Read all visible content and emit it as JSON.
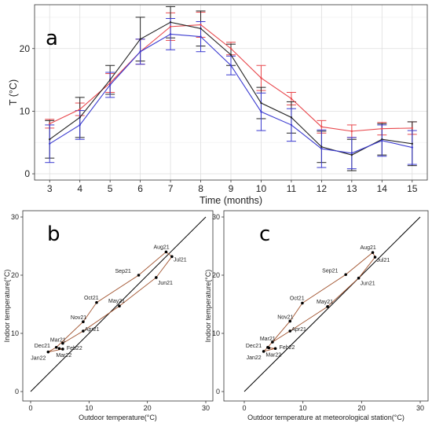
{
  "chart_data": [
    {
      "type": "line",
      "panel_label": "a",
      "xlabel": "Time (months)",
      "ylabel": "T (°C)",
      "x": [
        3,
        4,
        5,
        6,
        7,
        8,
        9,
        10,
        11,
        12,
        13,
        14,
        15
      ],
      "xlim": [
        2.5,
        15.5
      ],
      "ylim": [
        -1,
        27
      ],
      "x_ticks": [
        3,
        4,
        5,
        6,
        7,
        8,
        9,
        10,
        11,
        12,
        13,
        14,
        15
      ],
      "y_ticks": [
        0,
        10,
        20
      ],
      "grid": true,
      "legend": "none",
      "series": [
        {
          "color": "#e8474c",
          "values": [
            8.0,
            10.3,
            14.5,
            19.5,
            23.5,
            23.8,
            20.0,
            15.3,
            12.0,
            7.5,
            6.8,
            7.2,
            7.3
          ],
          "err": [
            0.7,
            1.0,
            1.5,
            2.0,
            2.2,
            2.0,
            1.0,
            2.0,
            1.0,
            1.0,
            1.0,
            1.0,
            1.0
          ]
        },
        {
          "color": "#222222",
          "values": [
            5.5,
            9.0,
            15.0,
            21.5,
            24.2,
            23.2,
            19.0,
            11.3,
            9.0,
            4.3,
            3.0,
            5.5,
            4.8
          ],
          "err": [
            3.0,
            3.2,
            2.3,
            3.5,
            2.5,
            2.8,
            1.7,
            2.5,
            2.5,
            2.5,
            2.5,
            2.5,
            3.5
          ]
        },
        {
          "color": "#3a3ad0",
          "values": [
            4.8,
            7.8,
            14.2,
            19.5,
            22.3,
            21.9,
            17.3,
            9.9,
            7.8,
            4.0,
            3.3,
            5.3,
            4.2
          ],
          "err": [
            3.0,
            2.3,
            2.0,
            2.0,
            2.5,
            2.4,
            1.5,
            3.0,
            2.6,
            3.0,
            2.5,
            2.5,
            2.7
          ]
        }
      ]
    },
    {
      "type": "scatter",
      "panel_label": "b",
      "xlabel": "Outdoor temperature(°C)",
      "ylabel": "Indoor temperature(°C)",
      "xlim": [
        0,
        30
      ],
      "ylim": [
        0,
        30
      ],
      "x_ticks": [
        0,
        10,
        20,
        30
      ],
      "y_ticks": [
        0,
        10,
        20,
        30
      ],
      "grid": false,
      "identity_line": true,
      "path_color": "#a0522d",
      "points": [
        {
          "label": "Mar21",
          "x": 5.5,
          "y": 8.3
        },
        {
          "label": "Apr21",
          "x": 9.0,
          "y": 10.4
        },
        {
          "label": "May21",
          "x": 15.2,
          "y": 14.7
        },
        {
          "label": "Jun21",
          "x": 21.5,
          "y": 19.6
        },
        {
          "label": "Jul21",
          "x": 24.2,
          "y": 23.2
        },
        {
          "label": "Aug21",
          "x": 23.2,
          "y": 24.0
        },
        {
          "label": "Sep21",
          "x": 18.5,
          "y": 20.0
        },
        {
          "label": "Oct21",
          "x": 11.3,
          "y": 15.3
        },
        {
          "label": "Nov21",
          "x": 9.0,
          "y": 12.0
        },
        {
          "label": "Dec21",
          "x": 4.4,
          "y": 7.6
        },
        {
          "label": "Jan22",
          "x": 3.0,
          "y": 6.8
        },
        {
          "label": "Feb22",
          "x": 5.5,
          "y": 7.3
        },
        {
          "label": "Mar22",
          "x": 4.9,
          "y": 7.4
        }
      ]
    },
    {
      "type": "scatter",
      "panel_label": "c",
      "xlabel": "Outdoor temperature at meteorological station(°C)",
      "ylabel": "Indoor temperature(°C)",
      "xlim": [
        0,
        30
      ],
      "ylim": [
        0,
        30
      ],
      "x_ticks": [
        0,
        10,
        20,
        30
      ],
      "y_ticks": [
        0,
        10,
        20,
        30
      ],
      "grid": false,
      "identity_line": true,
      "path_color": "#a0522d",
      "points": [
        {
          "label": "Mar21",
          "x": 4.8,
          "y": 8.5
        },
        {
          "label": "Apr21",
          "x": 7.8,
          "y": 10.4
        },
        {
          "label": "May21",
          "x": 14.2,
          "y": 14.6
        },
        {
          "label": "Jun21",
          "x": 19.5,
          "y": 19.5
        },
        {
          "label": "Jul21",
          "x": 22.3,
          "y": 23.1
        },
        {
          "label": "Aug21",
          "x": 21.9,
          "y": 23.9
        },
        {
          "label": "Sep21",
          "x": 17.3,
          "y": 20.1
        },
        {
          "label": "Oct21",
          "x": 9.9,
          "y": 15.2
        },
        {
          "label": "Nov21",
          "x": 7.8,
          "y": 12.1
        },
        {
          "label": "Dec21",
          "x": 4.0,
          "y": 7.6
        },
        {
          "label": "Jan22",
          "x": 3.3,
          "y": 6.9
        },
        {
          "label": "Feb22",
          "x": 5.3,
          "y": 7.4
        },
        {
          "label": "Mar22",
          "x": 4.2,
          "y": 7.5
        }
      ]
    }
  ]
}
